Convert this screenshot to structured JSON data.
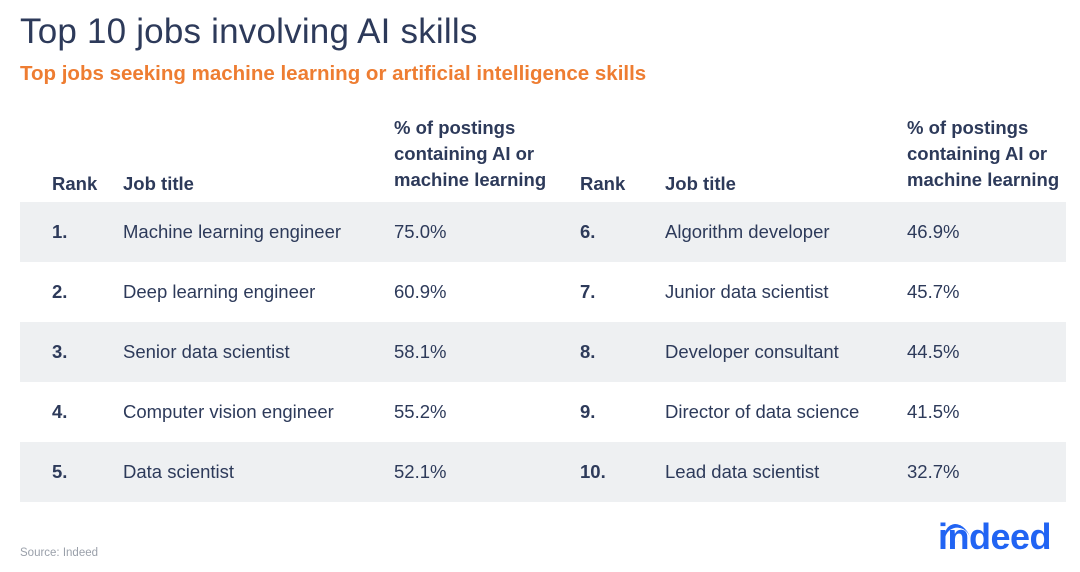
{
  "chart_data": {
    "type": "table",
    "title": "Top 10 jobs involving AI skills",
    "subtitle": "Top jobs seeking machine learning or artificial intelligence skills",
    "columns": [
      "Rank",
      "Job title",
      "% of postings containing AI or machine learning"
    ],
    "rows": [
      {
        "rank": "1.",
        "job": "Machine learning engineer",
        "pct": "75.0%"
      },
      {
        "rank": "2.",
        "job": "Deep learning engineer",
        "pct": "60.9%"
      },
      {
        "rank": "3.",
        "job": "Senior data scientist",
        "pct": "58.1%"
      },
      {
        "rank": "4.",
        "job": "Computer vision engineer",
        "pct": "55.2%"
      },
      {
        "rank": "5.",
        "job": "Data scientist",
        "pct": "52.1%"
      },
      {
        "rank": "6.",
        "job": "Algorithm developer",
        "pct": "46.9%"
      },
      {
        "rank": "7.",
        "job": "Junior data scientist",
        "pct": "45.7%"
      },
      {
        "rank": "8.",
        "job": "Developer consultant",
        "pct": "44.5%"
      },
      {
        "rank": "9.",
        "job": "Director of data science",
        "pct": "41.5%"
      },
      {
        "rank": "10.",
        "job": "Lead data scientist",
        "pct": "32.7%"
      }
    ]
  },
  "source": "Source: Indeed",
  "logo": "indeed",
  "colors": {
    "title": "#2d3a5a",
    "subtitle": "#ee7d32",
    "band": "#eef0f2",
    "logo": "#2164f3",
    "source": "#9aa0aa"
  }
}
